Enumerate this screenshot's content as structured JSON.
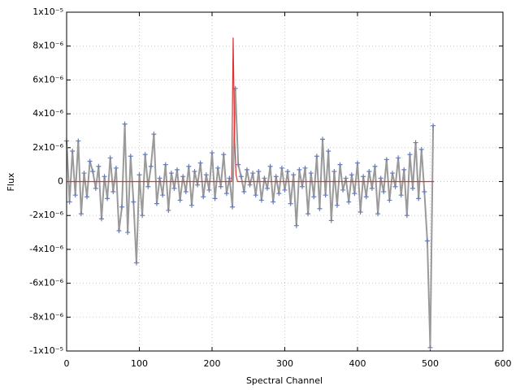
{
  "chart_data": {
    "type": "line",
    "xlabel": "Spectral Channel",
    "ylabel": "Flux",
    "xlim": [
      0,
      600
    ],
    "xticks": [
      0,
      100,
      200,
      300,
      400,
      500,
      600
    ],
    "ylim": [
      -1e-05,
      1e-05
    ],
    "yticks": [
      {
        "value": -1e-05,
        "label": "-1x10⁻⁵"
      },
      {
        "value": -8e-06,
        "label": "-8x10⁻⁶"
      },
      {
        "value": -6e-06,
        "label": "-6x10⁻⁶"
      },
      {
        "value": -4e-06,
        "label": "-4x10⁻⁶"
      },
      {
        "value": -2e-06,
        "label": "-2x10⁻⁶"
      },
      0,
      {
        "value": 2e-06,
        "label": "2x10⁻⁶"
      },
      {
        "value": 4e-06,
        "label": "4x10⁻⁶"
      },
      {
        "value": 6e-06,
        "label": "6x10⁻⁶"
      },
      {
        "value": 8e-06,
        "label": "8x10⁻⁶"
      },
      {
        "value": 1e-05,
        "label": "1x10⁻⁵"
      }
    ],
    "grid": true,
    "series": [
      {
        "color": "#6b7db5",
        "line_color": "#9a9a9a",
        "marker": "+",
        "x": [
          0,
          4,
          8,
          12,
          16,
          20,
          24,
          28,
          32,
          36,
          40,
          44,
          48,
          52,
          56,
          60,
          64,
          68,
          72,
          76,
          80,
          84,
          88,
          92,
          96,
          100,
          104,
          108,
          112,
          116,
          120,
          124,
          128,
          132,
          136,
          140,
          144,
          148,
          152,
          156,
          160,
          164,
          168,
          172,
          176,
          180,
          184,
          188,
          192,
          196,
          200,
          204,
          208,
          212,
          216,
          220,
          224,
          228,
          232,
          236,
          240,
          244,
          248,
          252,
          256,
          260,
          264,
          268,
          272,
          276,
          280,
          284,
          288,
          292,
          296,
          300,
          304,
          308,
          312,
          316,
          320,
          324,
          328,
          332,
          336,
          340,
          344,
          348,
          352,
          356,
          360,
          364,
          368,
          372,
          376,
          380,
          384,
          388,
          392,
          396,
          400,
          404,
          408,
          412,
          416,
          420,
          424,
          428,
          432,
          436,
          440,
          444,
          448,
          452,
          456,
          460,
          464,
          468,
          472,
          476,
          480,
          484,
          488,
          492,
          496,
          500,
          504
        ],
        "values": [
          2.4e-06,
          -1.2e-06,
          1.8e-06,
          -8e-07,
          2.4e-06,
          -1.9e-06,
          5e-07,
          -9e-07,
          1.2e-06,
          6e-07,
          -4e-07,
          9e-07,
          -2.2e-06,
          3e-07,
          -1e-06,
          1.4e-06,
          -6e-07,
          8e-07,
          -2.9e-06,
          -1.5e-06,
          3.4e-06,
          -3e-06,
          1.5e-06,
          -1.2e-06,
          -4.8e-06,
          4e-07,
          -2e-06,
          1.6e-06,
          -3e-07,
          9e-07,
          2.8e-06,
          -1.3e-06,
          2e-07,
          -8e-07,
          1e-06,
          -1.7e-06,
          5e-07,
          -4e-07,
          7e-07,
          -1.1e-06,
          3e-07,
          -6e-07,
          9e-07,
          -1.4e-06,
          6e-07,
          -2e-07,
          1.1e-06,
          -9e-07,
          4e-07,
          -5e-07,
          1.7e-06,
          -1e-06,
          8e-07,
          -3e-07,
          1.6e-06,
          -7e-07,
          2e-07,
          -1.5e-06,
          5.5e-06,
          1e-06,
          3e-07,
          -6e-07,
          7e-07,
          -2e-07,
          5e-07,
          -8e-07,
          6e-07,
          -1.1e-06,
          2e-07,
          -4e-07,
          9e-07,
          -1.2e-06,
          3e-07,
          -7e-07,
          8e-07,
          -5e-07,
          6e-07,
          -1.3e-06,
          4e-07,
          -2.6e-06,
          7e-07,
          -3e-07,
          8e-07,
          -1.9e-06,
          5e-07,
          -9e-07,
          1.5e-06,
          -1.6e-06,
          2.5e-06,
          -8e-07,
          1.8e-06,
          -2.3e-06,
          6e-07,
          -1.4e-06,
          1e-06,
          -5e-07,
          2e-07,
          -1.2e-06,
          4e-07,
          -7e-07,
          1.1e-06,
          -1.8e-06,
          3e-07,
          -9e-07,
          6e-07,
          -4e-07,
          9e-07,
          -1.9e-06,
          2e-07,
          -6e-07,
          1.3e-06,
          -1.1e-06,
          5e-07,
          -3e-07,
          1.4e-06,
          -8e-07,
          7e-07,
          -2e-06,
          1.6e-06,
          -4e-07,
          2.3e-06,
          -1e-06,
          1.9e-06,
          -6e-07,
          -3.5e-06,
          -9.8e-06,
          3.3e-06
        ]
      },
      {
        "color": "#e03030",
        "x": [
          0,
          227,
          229,
          231,
          233,
          235,
          505
        ],
        "values": [
          0,
          0,
          8.5e-06,
          2.5e-06,
          4e-07,
          0,
          0
        ]
      }
    ]
  }
}
